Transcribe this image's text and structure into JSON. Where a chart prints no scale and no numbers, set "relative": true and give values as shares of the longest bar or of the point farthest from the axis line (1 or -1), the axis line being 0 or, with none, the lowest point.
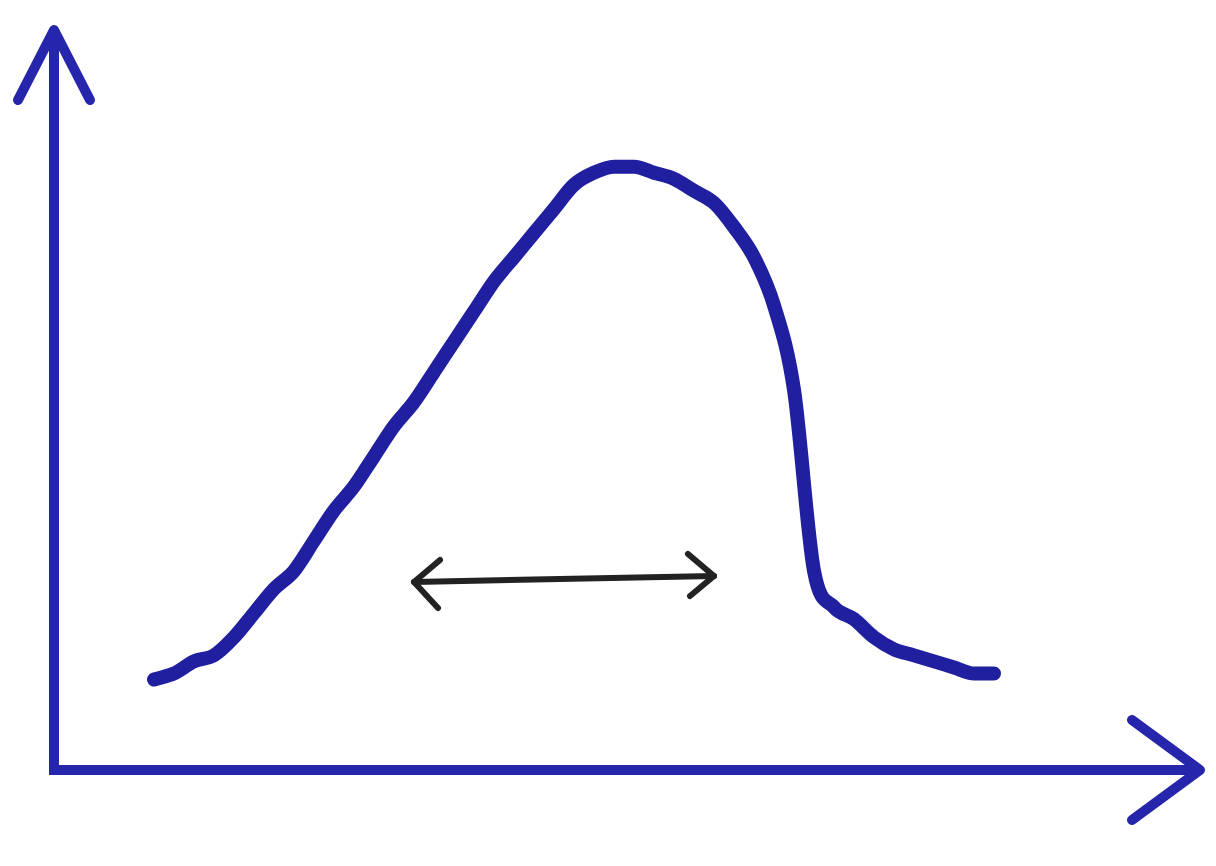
{
  "chart_data": {
    "type": "line",
    "relative": true,
    "marker": "none",
    "categories": [
      null,
      null,
      null,
      null,
      null,
      null,
      null,
      null,
      null,
      null,
      null,
      null,
      null,
      null,
      null,
      null,
      null,
      null,
      null,
      null,
      null,
      null,
      null,
      null,
      null,
      null,
      null,
      null,
      null,
      null,
      null,
      null,
      null,
      null,
      null,
      null,
      null,
      null,
      null,
      null,
      null,
      null,
      null,
      null,
      null,
      null,
      null,
      null,
      null,
      null,
      null,
      null,
      null,
      null,
      null,
      null,
      null,
      null
    ],
    "series": [
      {
        "color": "#1f1fa0",
        "values": [
          null,
          null,
          null,
          null,
          null,
          0.15,
          0.16,
          0.18,
          0.19,
          0.22,
          0.26,
          0.3,
          0.33,
          0.38,
          0.43,
          0.47,
          0.52,
          0.57,
          0.61,
          0.66,
          0.71,
          0.76,
          0.81,
          0.85,
          0.89,
          0.93,
          0.97,
          0.99,
          1.0,
          1.0,
          0.99,
          0.98,
          0.96,
          0.94,
          0.9,
          0.85,
          0.77,
          0.63,
          0.33,
          0.27,
          0.25,
          0.22,
          0.2,
          0.19,
          0.18,
          0.17,
          0.16,
          0.16,
          null,
          null,
          null,
          null,
          null,
          null,
          null,
          null,
          null,
          null
        ]
      }
    ]
  }
}
